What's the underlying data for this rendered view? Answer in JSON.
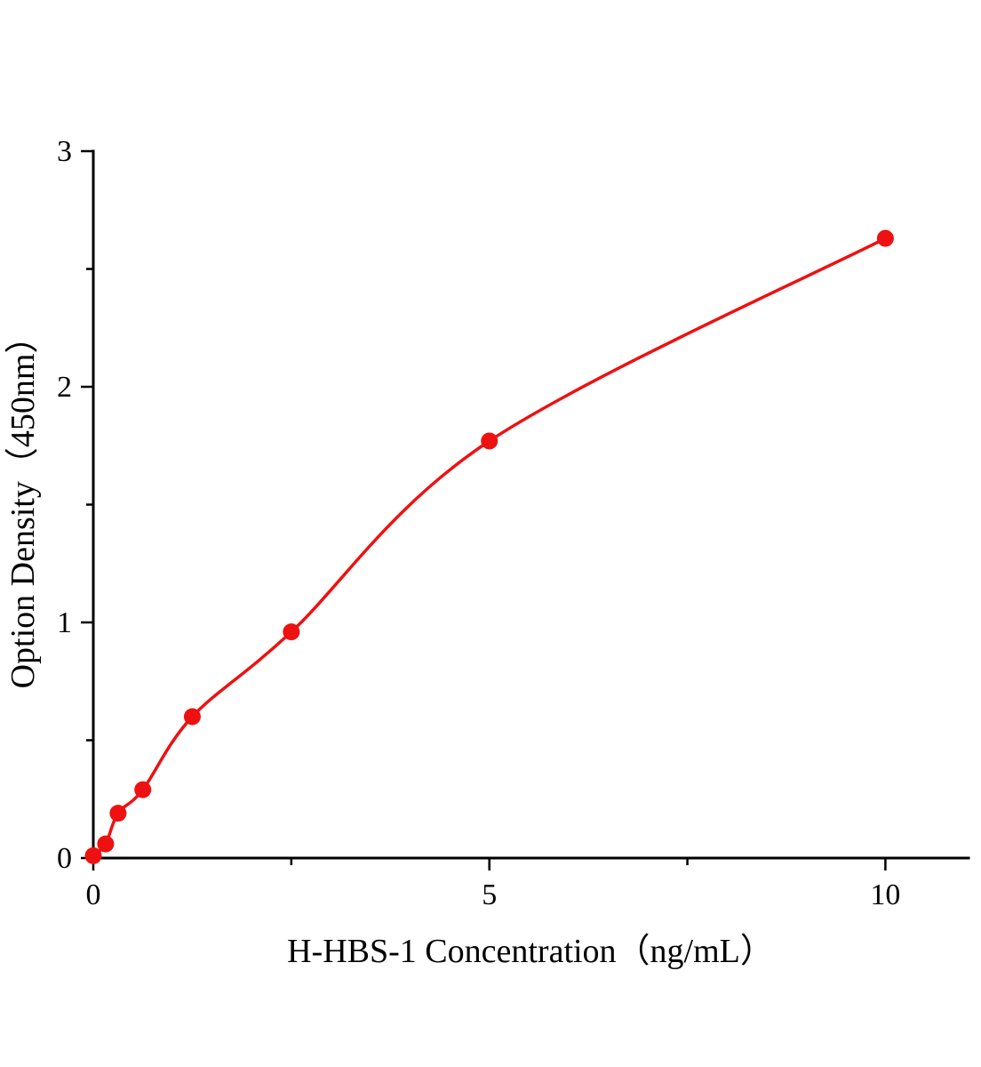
{
  "chart_data": {
    "type": "scatter",
    "title": "",
    "xlabel": "H-HBS-1 Concentration（ng/mL）",
    "ylabel": "Option Density（450nm）",
    "x": [
      0,
      0.156,
      0.3125,
      0.625,
      1.25,
      2.5,
      5,
      10
    ],
    "y": [
      0.01,
      0.06,
      0.19,
      0.29,
      0.6,
      0.96,
      1.77,
      2.63
    ],
    "xlim": [
      0,
      11.05
    ],
    "ylim": [
      0,
      3
    ],
    "x_major_ticks": [
      0,
      5,
      10
    ],
    "x_minor_ticks": [
      2.5,
      7.5
    ],
    "y_major_ticks": [
      0,
      1,
      2,
      3
    ],
    "y_minor_ticks": [
      0.5,
      1.5,
      2.5
    ],
    "grid": false,
    "legend": "none",
    "curve_style": "smooth-fit",
    "marker_shape": "circle",
    "marker_color": "#ee1111",
    "line_color": "#ee1111",
    "axis_color": "#000000",
    "background_color": "#ffffff"
  }
}
